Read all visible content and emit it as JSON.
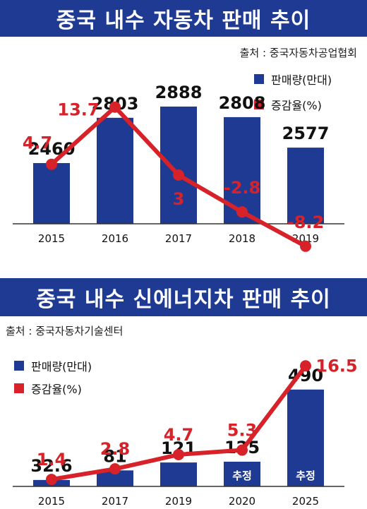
{
  "chart_data": [
    {
      "type": "bar",
      "title": "중국 내수 자동차 판매 추이",
      "source": "출처 : 중국자동차공업협회",
      "categories": [
        "2015",
        "2016",
        "2017",
        "2018",
        "2019"
      ],
      "series": [
        {
          "name": "판매량(만대)",
          "type": "bar",
          "values": [
            2460,
            2803,
            2888,
            2808,
            2577
          ]
        },
        {
          "name": "증감율(%)",
          "type": "line",
          "values": [
            4.7,
            13.7,
            3,
            -2.8,
            -8.2
          ]
        }
      ],
      "value_labels": [
        "2460",
        "2803",
        "2888",
        "2808",
        "2577"
      ],
      "pct_labels": [
        "4.7",
        "13.7",
        "3",
        "-2.8",
        "-8.2"
      ],
      "bar_ylim": [
        2000,
        3000
      ],
      "line_ylim": [
        -10,
        15
      ]
    },
    {
      "type": "bar",
      "title": "중국 내수 신에너지차 판매 추이",
      "source": "출처 : 중국자동차기술센터",
      "categories": [
        "2015",
        "2017",
        "2019",
        "2020",
        "2025"
      ],
      "series": [
        {
          "name": "판매량(만대)",
          "type": "bar",
          "values": [
            32.6,
            81,
            121,
            125,
            490
          ]
        },
        {
          "name": "증감율(%)",
          "type": "line",
          "values": [
            1.4,
            2.8,
            4.7,
            5.3,
            16.5
          ]
        }
      ],
      "value_labels": [
        "32.6",
        "81",
        "121",
        "125",
        "490"
      ],
      "pct_labels": [
        "1.4",
        "2.8",
        "4.7",
        "5.3",
        "16.5"
      ],
      "estimate_labels": [
        "",
        "",
        "",
        "추정",
        "추정"
      ],
      "bar_ylim": [
        0,
        600
      ],
      "line_ylim": [
        0,
        20
      ]
    }
  ],
  "colors": {
    "bar": "#1f3a93",
    "line": "#d62228",
    "banner": "#1f3a93"
  }
}
